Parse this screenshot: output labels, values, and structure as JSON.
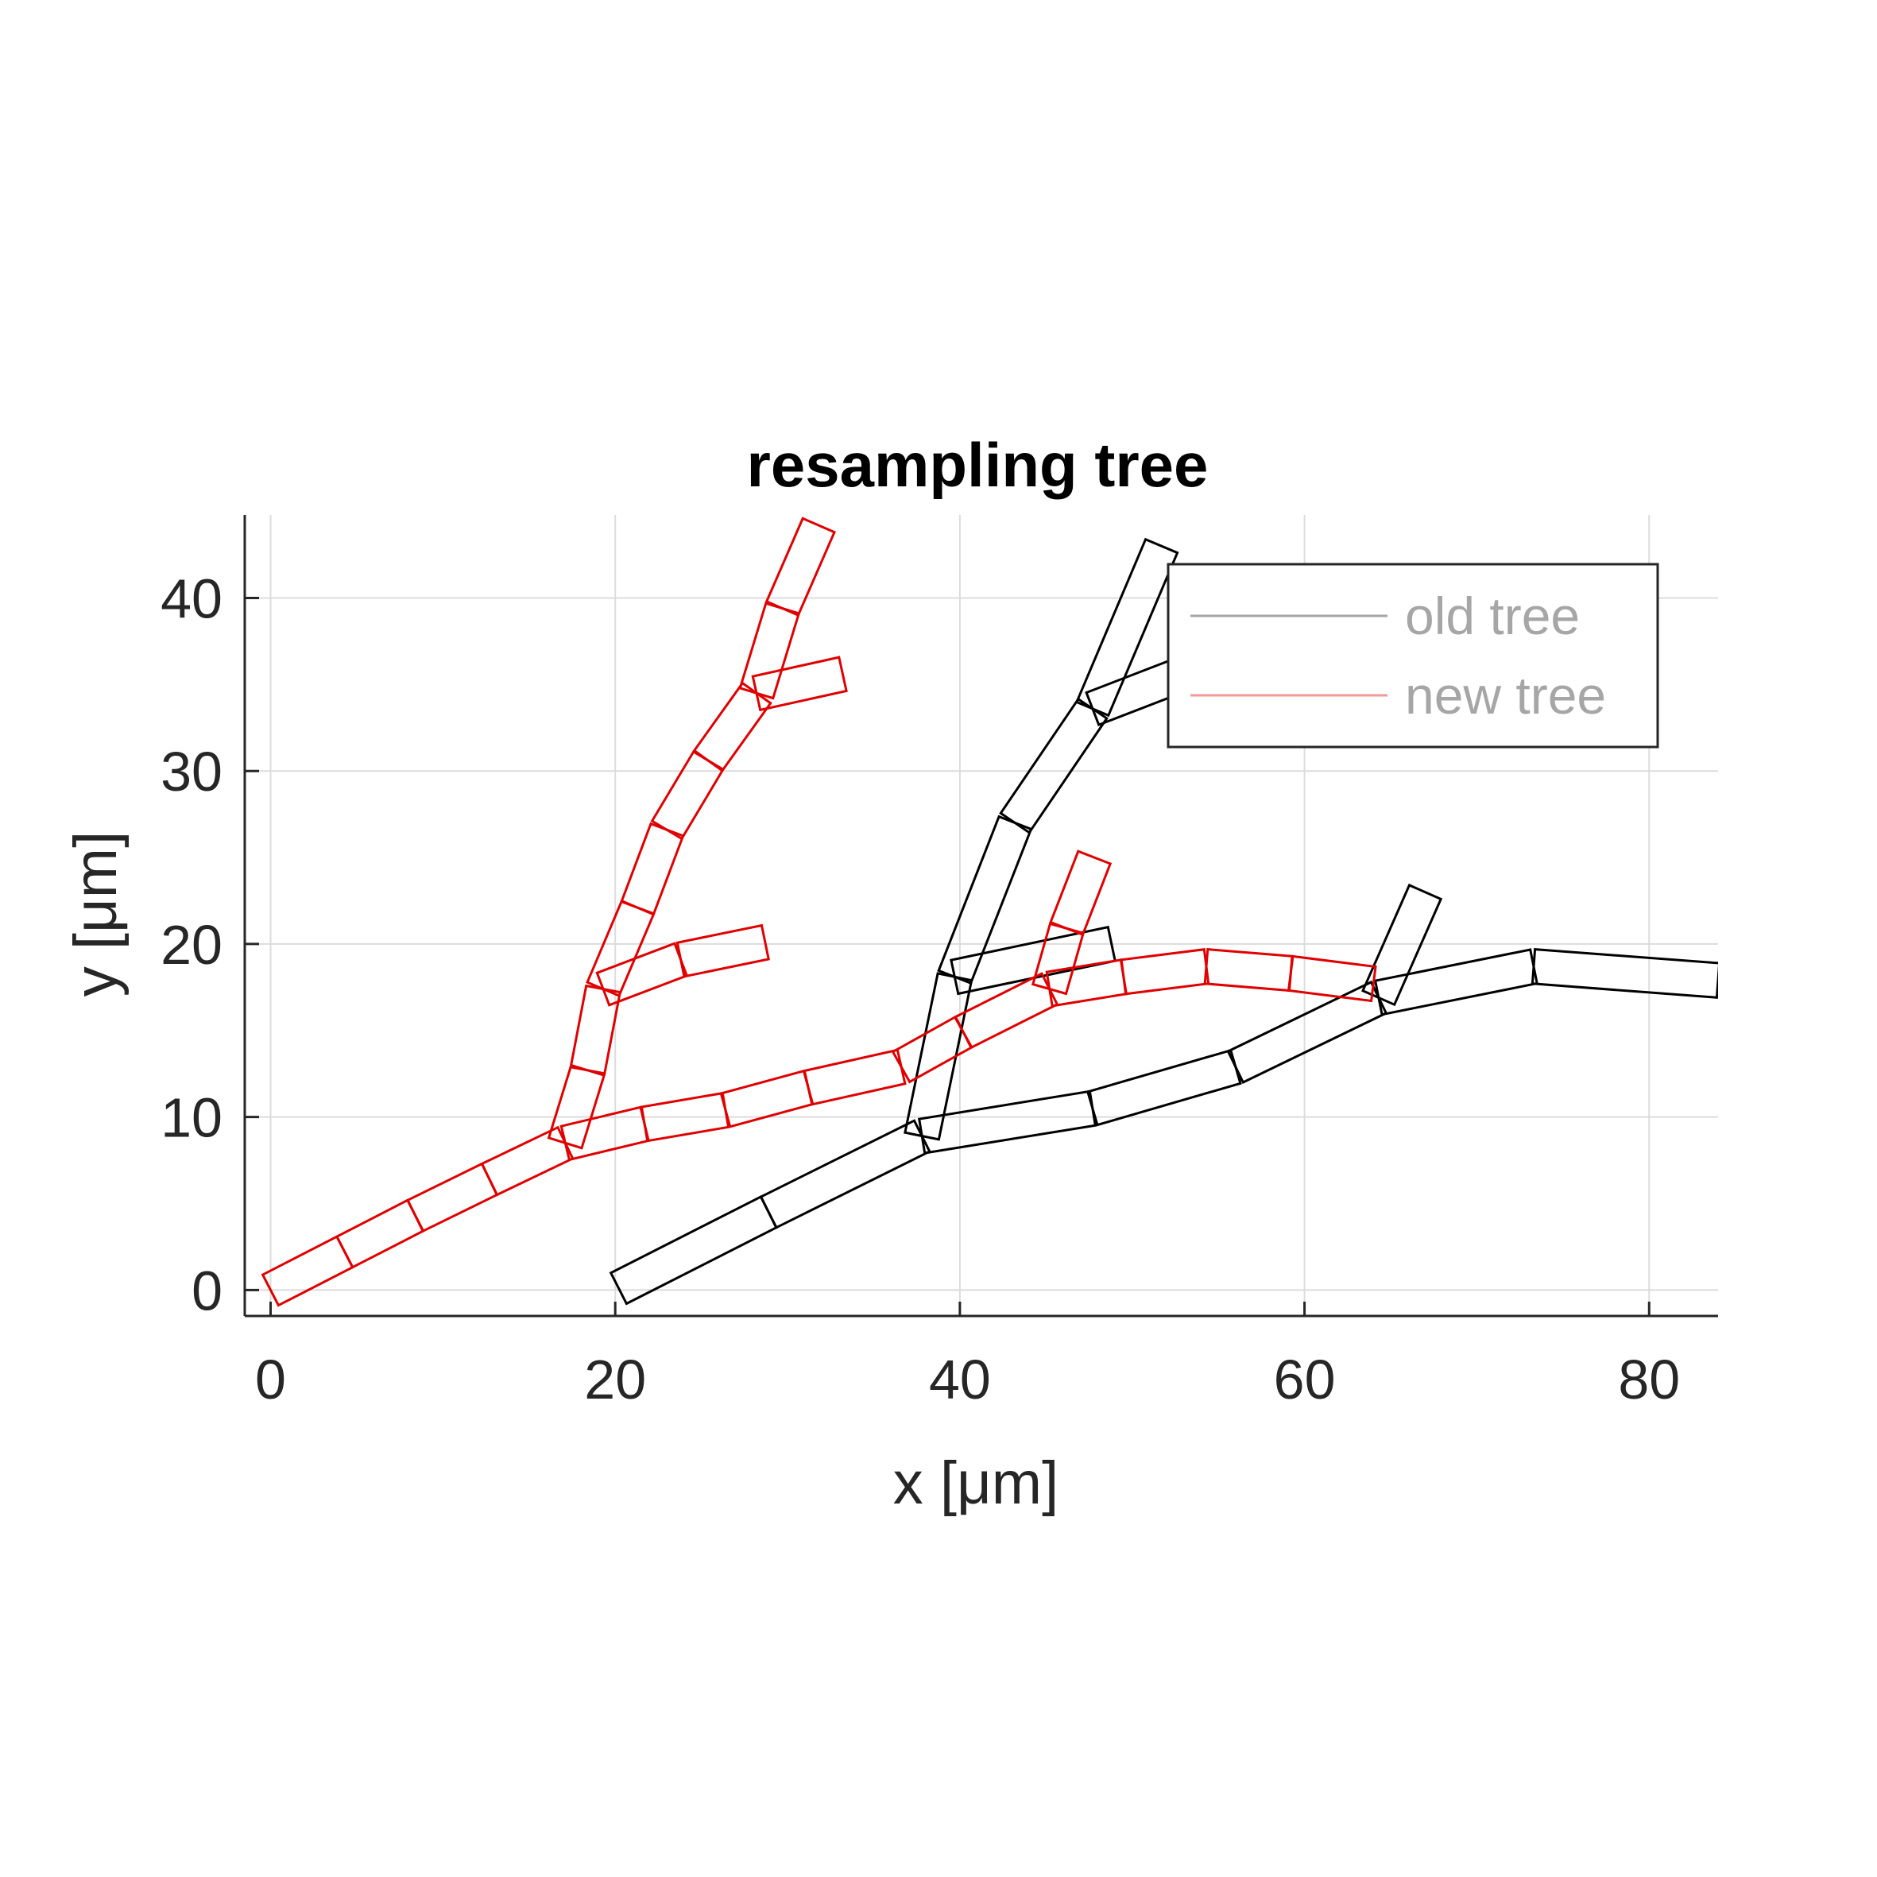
{
  "chart_data": {
    "type": "line",
    "title": "resampling tree",
    "xlabel": "x [μm]",
    "ylabel": "y [μm]",
    "xlim": [
      -1.5,
      84
    ],
    "ylim": [
      -1.5,
      44.8
    ],
    "xticks": [
      0,
      20,
      40,
      60,
      80
    ],
    "yticks": [
      0,
      10,
      20,
      30,
      40
    ],
    "grid": true,
    "legend_placement": "top-right",
    "series": [
      {
        "name": "old tree",
        "color": "#000000",
        "legend_color": "#a6a6a6",
        "diameter": 2.0,
        "segments": [
          [
            [
              20.2,
              0.1
            ],
            [
              28.9,
              4.5
            ]
          ],
          [
            [
              28.9,
              4.5
            ],
            [
              37.8,
              8.9
            ]
          ],
          [
            [
              37.8,
              8.9
            ],
            [
              47.7,
              10.5
            ]
          ],
          [
            [
              47.7,
              10.5
            ],
            [
              56.0,
              12.9
            ]
          ],
          [
            [
              56.0,
              12.9
            ],
            [
              64.3,
              16.9
            ]
          ],
          [
            [
              64.3,
              16.9
            ],
            [
              73.3,
              18.7
            ]
          ],
          [
            [
              73.3,
              18.7
            ],
            [
              84.0,
              17.9
            ]
          ],
          [
            [
              37.8,
              8.9
            ],
            [
              39.7,
              18.1
            ]
          ],
          [
            [
              39.7,
              18.1
            ],
            [
              43.2,
              27.0
            ]
          ],
          [
            [
              43.2,
              27.0
            ],
            [
              47.7,
              33.6
            ]
          ],
          [
            [
              47.7,
              33.6
            ],
            [
              55.0,
              36.4
            ]
          ],
          [
            [
              47.7,
              33.6
            ],
            [
              51.7,
              43.0
            ]
          ],
          [
            [
              39.7,
              18.1
            ],
            [
              48.8,
              20.0
            ]
          ],
          [
            [
              64.3,
              16.9
            ],
            [
              67.0,
              23.0
            ]
          ]
        ]
      },
      {
        "name": "new tree",
        "color": "#e00000",
        "legend_color": "#f29a9a",
        "diameter": 2.0,
        "segments": [
          [
            [
              0.0,
              0.0
            ],
            [
              4.3,
              2.2
            ]
          ],
          [
            [
              4.3,
              2.2
            ],
            [
              8.4,
              4.3
            ]
          ],
          [
            [
              8.4,
              4.3
            ],
            [
              12.7,
              6.4
            ]
          ],
          [
            [
              12.7,
              6.4
            ],
            [
              17.1,
              8.5
            ]
          ],
          [
            [
              17.1,
              8.5
            ],
            [
              21.7,
              9.6
            ]
          ],
          [
            [
              21.7,
              9.6
            ],
            [
              26.4,
              10.4
            ]
          ],
          [
            [
              26.4,
              10.4
            ],
            [
              31.2,
              11.7
            ]
          ],
          [
            [
              31.2,
              11.7
            ],
            [
              36.6,
              12.9
            ]
          ],
          [
            [
              36.6,
              12.9
            ],
            [
              40.2,
              14.9
            ]
          ],
          [
            [
              40.2,
              14.9
            ],
            [
              45.2,
              17.4
            ]
          ],
          [
            [
              45.2,
              17.4
            ],
            [
              49.5,
              18.1
            ]
          ],
          [
            [
              49.5,
              18.1
            ],
            [
              54.3,
              18.7
            ]
          ],
          [
            [
              54.3,
              18.7
            ],
            [
              59.2,
              18.3
            ]
          ],
          [
            [
              59.2,
              18.3
            ],
            [
              64.0,
              17.7
            ]
          ],
          [
            [
              17.1,
              8.5
            ],
            [
              18.4,
              12.7
            ]
          ],
          [
            [
              18.4,
              12.7
            ],
            [
              19.3,
              17.4
            ]
          ],
          [
            [
              19.3,
              17.4
            ],
            [
              21.3,
              22.1
            ]
          ],
          [
            [
              21.3,
              22.1
            ],
            [
              23.0,
              26.6
            ]
          ],
          [
            [
              23.0,
              26.6
            ],
            [
              25.4,
              30.6
            ]
          ],
          [
            [
              25.4,
              30.6
            ],
            [
              28.2,
              34.5
            ]
          ],
          [
            [
              28.2,
              34.5
            ],
            [
              29.7,
              39.4
            ]
          ],
          [
            [
              29.7,
              39.4
            ],
            [
              31.8,
              44.2
            ]
          ],
          [
            [
              28.2,
              34.5
            ],
            [
              33.2,
              35.6
            ]
          ],
          [
            [
              19.3,
              17.4
            ],
            [
              23.8,
              19.1
            ]
          ],
          [
            [
              23.8,
              19.1
            ],
            [
              28.7,
              20.1
            ]
          ],
          [
            [
              45.2,
              17.4
            ],
            [
              46.2,
              20.9
            ]
          ],
          [
            [
              46.2,
              20.9
            ],
            [
              47.8,
              25.0
            ]
          ]
        ]
      }
    ]
  }
}
